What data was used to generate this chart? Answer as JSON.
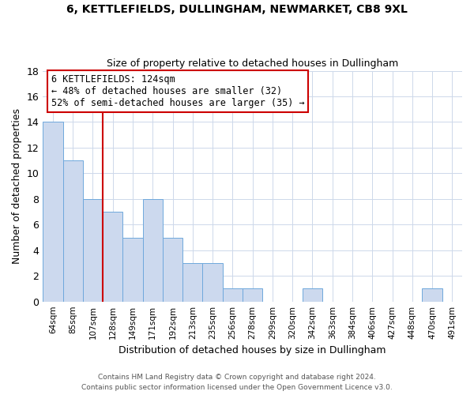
{
  "title_line1": "6, KETTLEFIELDS, DULLINGHAM, NEWMARKET, CB8 9XL",
  "title_line2": "Size of property relative to detached houses in Dullingham",
  "xlabel": "Distribution of detached houses by size in Dullingham",
  "ylabel": "Number of detached properties",
  "bar_labels": [
    "64sqm",
    "85sqm",
    "107sqm",
    "128sqm",
    "149sqm",
    "171sqm",
    "192sqm",
    "213sqm",
    "235sqm",
    "256sqm",
    "278sqm",
    "299sqm",
    "320sqm",
    "342sqm",
    "363sqm",
    "384sqm",
    "406sqm",
    "427sqm",
    "448sqm",
    "470sqm",
    "491sqm"
  ],
  "bar_values": [
    14,
    11,
    8,
    7,
    5,
    8,
    5,
    3,
    3,
    1,
    1,
    0,
    0,
    1,
    0,
    0,
    0,
    0,
    0,
    1,
    0
  ],
  "bar_color": "#ccd9ee",
  "bar_edge_color": "#6fa8dc",
  "background_color": "#ffffff",
  "grid_color": "#cdd8ea",
  "annotation_box_text_line1": "6 KETTLEFIELDS: 124sqm",
  "annotation_box_text_line2": "← 48% of detached houses are smaller (32)",
  "annotation_box_text_line3": "52% of semi-detached houses are larger (35) →",
  "annotation_box_color": "#ffffff",
  "annotation_box_edge_color": "#cc0000",
  "vline_color": "#cc0000",
  "vline_x": 2.5,
  "ylim": [
    0,
    18
  ],
  "yticks": [
    0,
    2,
    4,
    6,
    8,
    10,
    12,
    14,
    16,
    18
  ],
  "footnote1": "Contains HM Land Registry data © Crown copyright and database right 2024.",
  "footnote2": "Contains public sector information licensed under the Open Government Licence v3.0."
}
